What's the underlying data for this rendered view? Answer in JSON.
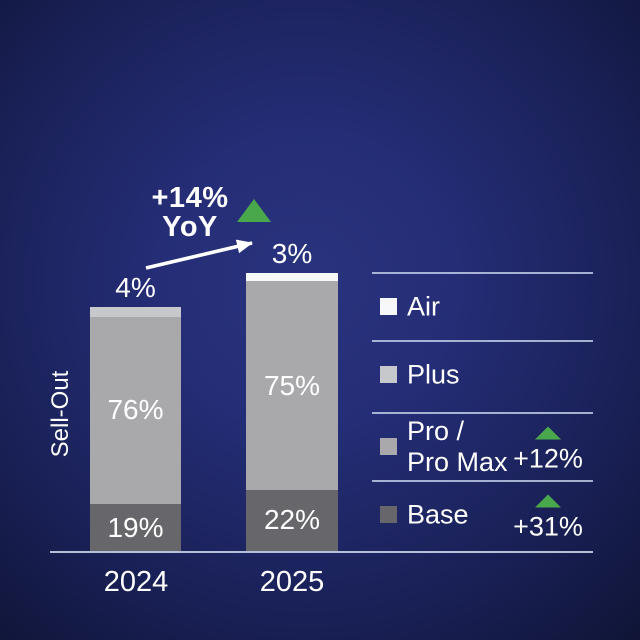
{
  "annotation": {
    "growth": "+14%",
    "period": "YoY"
  },
  "axis": {
    "ylabel": "Sell-Out",
    "categories": [
      "2024",
      "2025"
    ]
  },
  "colors": {
    "air": "#f7f8fa",
    "plus": "#c6c8cc",
    "pro": "#a9a9ac",
    "base": "#67676b",
    "green": "#4aa84c",
    "background_center": "#2a337e",
    "background_edge": "#101538"
  },
  "chart_data": {
    "type": "bar",
    "stacked": true,
    "unit": "%",
    "ylabel": "Sell-Out",
    "categories": [
      "2024",
      "2025"
    ],
    "series": [
      {
        "name": "Air",
        "color_key": "air",
        "values": [
          null,
          3
        ]
      },
      {
        "name": "Plus",
        "color_key": "plus",
        "values": [
          4,
          null
        ]
      },
      {
        "name": "Pro / Pro Max",
        "color_key": "pro",
        "values": [
          76,
          75
        ],
        "yoy": "+12%"
      },
      {
        "name": "Base",
        "color_key": "base",
        "values": [
          19,
          22
        ],
        "yoy": "+31%"
      }
    ],
    "total_growth_label": "+14%",
    "total_growth_sublabel": "YoY",
    "legend_position": "right"
  },
  "legend": {
    "rows": [
      {
        "label1": "Air",
        "label2": "",
        "color_key": "air",
        "delta": ""
      },
      {
        "label1": "Plus",
        "label2": "",
        "color_key": "plus",
        "delta": ""
      },
      {
        "label1": "Pro /",
        "label2": "Pro Max",
        "color_key": "pro",
        "delta": "+12%"
      },
      {
        "label1": "Base",
        "label2": "",
        "color_key": "base",
        "delta": "+31%"
      }
    ]
  }
}
